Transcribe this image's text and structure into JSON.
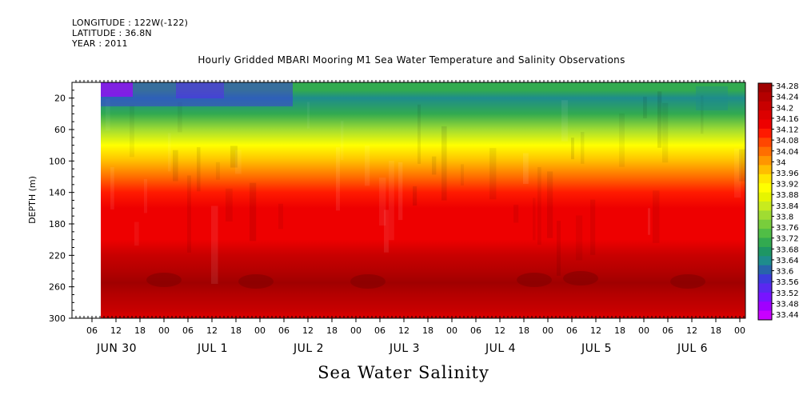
{
  "meta": {
    "longitude": "LONGITUDE : 122W(-122)",
    "latitude": "LATITUDE : 36.8N",
    "year": "YEAR : 2011"
  },
  "chart_title": "Hourly Gridded MBARI Mooring M1 Sea Water Temperature and Salinity Observations",
  "variable_title": "Sea Water Salinity",
  "chart_data": {
    "type": "heatmap",
    "title": "Hourly Gridded MBARI Mooring M1 Sea Water Temperature and Salinity Observations",
    "ylabel": "DEPTH (m)",
    "xlabel": "",
    "ylim": [
      300,
      0
    ],
    "y_ticks": [
      "20",
      "60",
      "100",
      "140",
      "180",
      "220",
      "260",
      "300"
    ],
    "x_hour_ticks": [
      "06",
      "12",
      "18",
      "00",
      "06",
      "12",
      "18",
      "00",
      "06",
      "12",
      "18",
      "00",
      "06",
      "12",
      "18",
      "00",
      "06",
      "12",
      "18",
      "00",
      "06",
      "12",
      "18",
      "00",
      "06",
      "12",
      "18",
      "00"
    ],
    "x_day_labels": [
      "JUN 30",
      "JUL 1",
      "JUL 2",
      "JUL 3",
      "JUL 4",
      "JUL 5",
      "JUL 6"
    ],
    "colorbar_labels": [
      "34.28",
      "34.24",
      "34.2",
      "34.16",
      "34.12",
      "34.08",
      "34.04",
      "34",
      "33.96",
      "33.92",
      "33.88",
      "33.84",
      "33.8",
      "33.76",
      "33.72",
      "33.68",
      "33.64",
      "33.6",
      "33.56",
      "33.52",
      "33.48",
      "33.44"
    ],
    "colorbar_colors": [
      "#a00000",
      "#b40000",
      "#c80000",
      "#dc0000",
      "#ee0000",
      "#ff1a00",
      "#ff4600",
      "#ff6e00",
      "#ff9600",
      "#ffbe00",
      "#ffe600",
      "#ffff00",
      "#e6f500",
      "#c8eb1e",
      "#a0dc32",
      "#78cd3c",
      "#50be46",
      "#32aa50",
      "#1e9664",
      "#1e8c8c",
      "#2864aa",
      "#3c3cdc",
      "#5a28f0",
      "#7814ff",
      "#a000ff",
      "#c800ff"
    ],
    "depth_profile": [
      {
        "depth": 10,
        "salinity": 33.7
      },
      {
        "depth": 20,
        "salinity": 33.66
      },
      {
        "depth": 40,
        "salinity": 33.72
      },
      {
        "depth": 60,
        "salinity": 33.82
      },
      {
        "depth": 80,
        "salinity": 33.9
      },
      {
        "depth": 100,
        "salinity": 33.97
      },
      {
        "depth": 120,
        "salinity": 34.05
      },
      {
        "depth": 140,
        "salinity": 34.1
      },
      {
        "depth": 160,
        "salinity": 34.12
      },
      {
        "depth": 180,
        "salinity": 34.13
      },
      {
        "depth": 200,
        "salinity": 34.15
      },
      {
        "depth": 220,
        "salinity": 34.19
      },
      {
        "depth": 240,
        "salinity": 34.22
      },
      {
        "depth": 255,
        "salinity": 34.26
      },
      {
        "depth": 270,
        "salinity": 34.22
      },
      {
        "depth": 290,
        "salinity": 34.19
      },
      {
        "depth": 300,
        "salinity": 34.18
      }
    ]
  }
}
